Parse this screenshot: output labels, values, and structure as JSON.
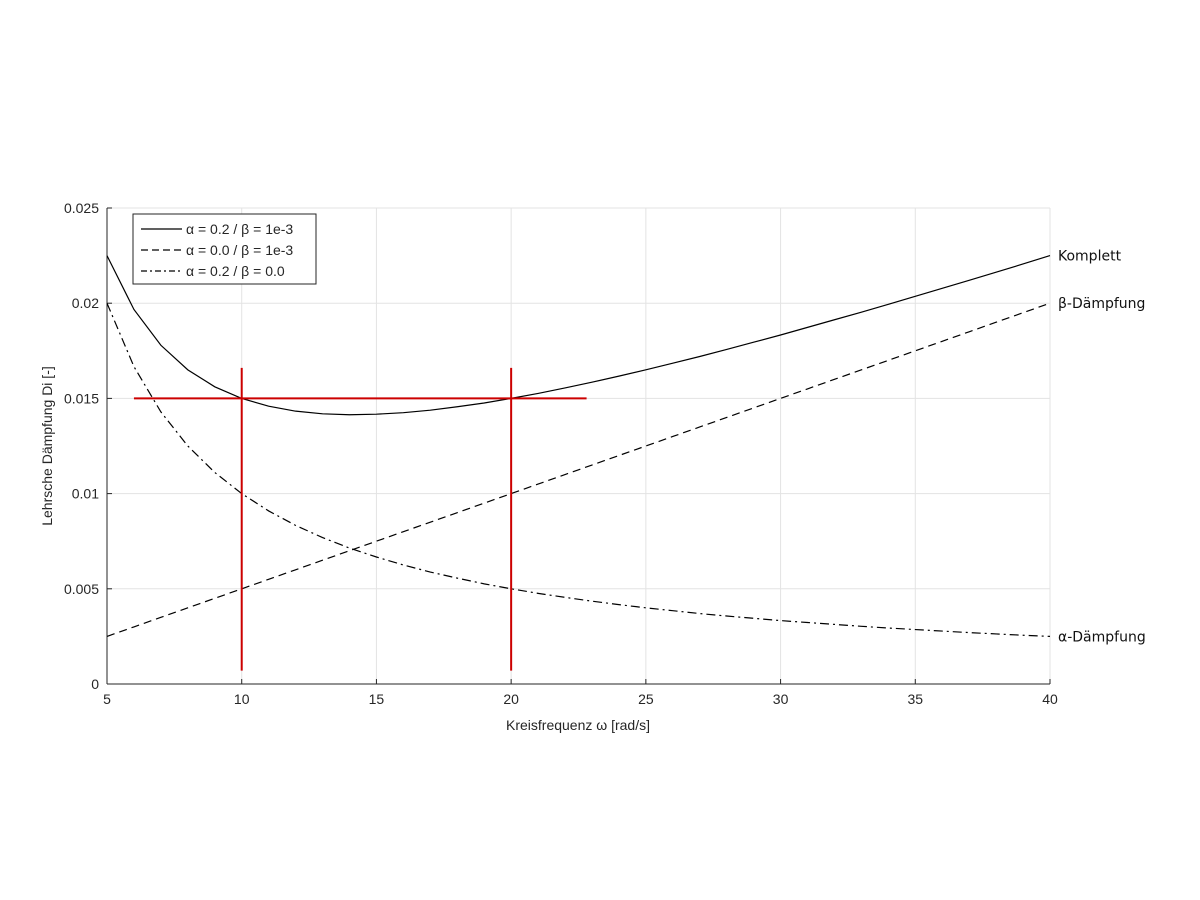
{
  "chart_data": {
    "type": "line",
    "xlabel": "Kreisfrequenz ω [rad/s]",
    "ylabel": "Lehrsche Dämpfung Di [-]",
    "xlim": [
      5,
      40
    ],
    "ylim": [
      0,
      0.025
    ],
    "xticks": [
      "5",
      "10",
      "15",
      "20",
      "25",
      "30",
      "35",
      "40"
    ],
    "yticks": [
      "0",
      "0.005",
      "0.01",
      "0.015",
      "0.02",
      "0.025"
    ],
    "grid": true,
    "legend_position": "top-left",
    "x": [
      5,
      6,
      7,
      8,
      9,
      10,
      11,
      12,
      13,
      14,
      15,
      16,
      17,
      18,
      19,
      20,
      21,
      22,
      23,
      24,
      25,
      26,
      27,
      28,
      29,
      30,
      31,
      32,
      33,
      34,
      35,
      36,
      37,
      38,
      39,
      40
    ],
    "series": [
      {
        "name": "α = 0.2 / β = 1e-3",
        "style": "solid",
        "end_label": "Komplett",
        "values": [
          0.0225,
          0.01967,
          0.01779,
          0.0165,
          0.01561,
          0.015,
          0.01459,
          0.01433,
          0.01419,
          0.01414,
          0.01417,
          0.01425,
          0.01438,
          0.01456,
          0.01476,
          0.015,
          0.01526,
          0.01555,
          0.01585,
          0.01617,
          0.0165,
          0.01685,
          0.0172,
          0.01757,
          0.01795,
          0.01833,
          0.01873,
          0.01913,
          0.01953,
          0.01994,
          0.02036,
          0.02078,
          0.0212,
          0.02163,
          0.02206,
          0.0225
        ]
      },
      {
        "name": "α = 0.0 / β = 1e-3",
        "style": "dashed",
        "end_label": "β-Dämpfung",
        "values": [
          0.0025,
          0.003,
          0.0035,
          0.004,
          0.0045,
          0.005,
          0.0055,
          0.006,
          0.0065,
          0.007,
          0.0075,
          0.008,
          0.0085,
          0.009,
          0.0095,
          0.01,
          0.0105,
          0.011,
          0.0115,
          0.012,
          0.0125,
          0.013,
          0.0135,
          0.014,
          0.0145,
          0.015,
          0.0155,
          0.016,
          0.0165,
          0.017,
          0.0175,
          0.018,
          0.0185,
          0.019,
          0.0195,
          0.02
        ]
      },
      {
        "name": "α = 0.2 / β = 0.0",
        "style": "dashdot",
        "end_label": "α-Dämpfung",
        "values": [
          0.02,
          0.01667,
          0.01429,
          0.0125,
          0.01111,
          0.01,
          0.00909,
          0.00833,
          0.00769,
          0.00714,
          0.00667,
          0.00625,
          0.00588,
          0.00556,
          0.00526,
          0.005,
          0.00476,
          0.00455,
          0.00435,
          0.00417,
          0.004,
          0.00385,
          0.0037,
          0.00357,
          0.00345,
          0.00333,
          0.00323,
          0.00313,
          0.00303,
          0.00294,
          0.00286,
          0.00278,
          0.0027,
          0.00263,
          0.00256,
          0.0025
        ]
      }
    ],
    "annotations": [
      {
        "type": "hline",
        "y": 0.015,
        "x_from": 6,
        "x_to": 22.8,
        "color": "#cc0000"
      },
      {
        "type": "vline",
        "x": 10,
        "y_from": 0.0007,
        "y_to": 0.0166,
        "color": "#cc0000"
      },
      {
        "type": "vline",
        "x": 20,
        "y_from": 0.0007,
        "y_to": 0.0166,
        "color": "#cc0000"
      }
    ]
  }
}
